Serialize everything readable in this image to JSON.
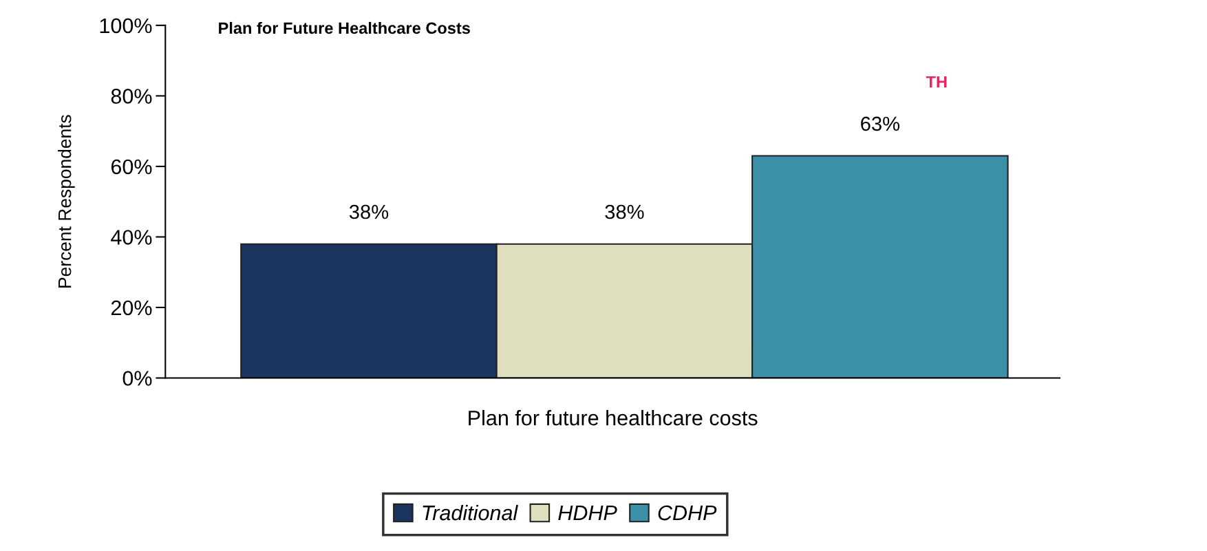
{
  "chart_data": {
    "type": "bar",
    "title": "Plan for Future Healthcare Costs",
    "xlabel": "Plan for future healthcare costs",
    "ylabel": "Percent Respondents",
    "categories": [
      null
    ],
    "series": [
      {
        "name": "Traditional",
        "color": "#1a365e",
        "values": [
          38
        ],
        "value_labels": [
          "38%"
        ]
      },
      {
        "name": "HDHP",
        "color": "#dfdfc0",
        "values": [
          38
        ],
        "value_labels": [
          "38%"
        ]
      },
      {
        "name": "CDHP",
        "color": "#3c91a8",
        "values": [
          63
        ],
        "value_labels": [
          "63%"
        ]
      }
    ],
    "annotations": [
      "TH"
    ],
    "ylim": [
      0,
      100
    ],
    "yticks": [
      {
        "value": 0,
        "label": "0%"
      },
      {
        "value": 20,
        "label": "20%"
      },
      {
        "value": 40,
        "label": "40%"
      },
      {
        "value": 60,
        "label": "60%"
      },
      {
        "value": 80,
        "label": "80%"
      },
      {
        "value": 100,
        "label": "100%"
      }
    ],
    "grid": false,
    "legend": "bottom"
  }
}
